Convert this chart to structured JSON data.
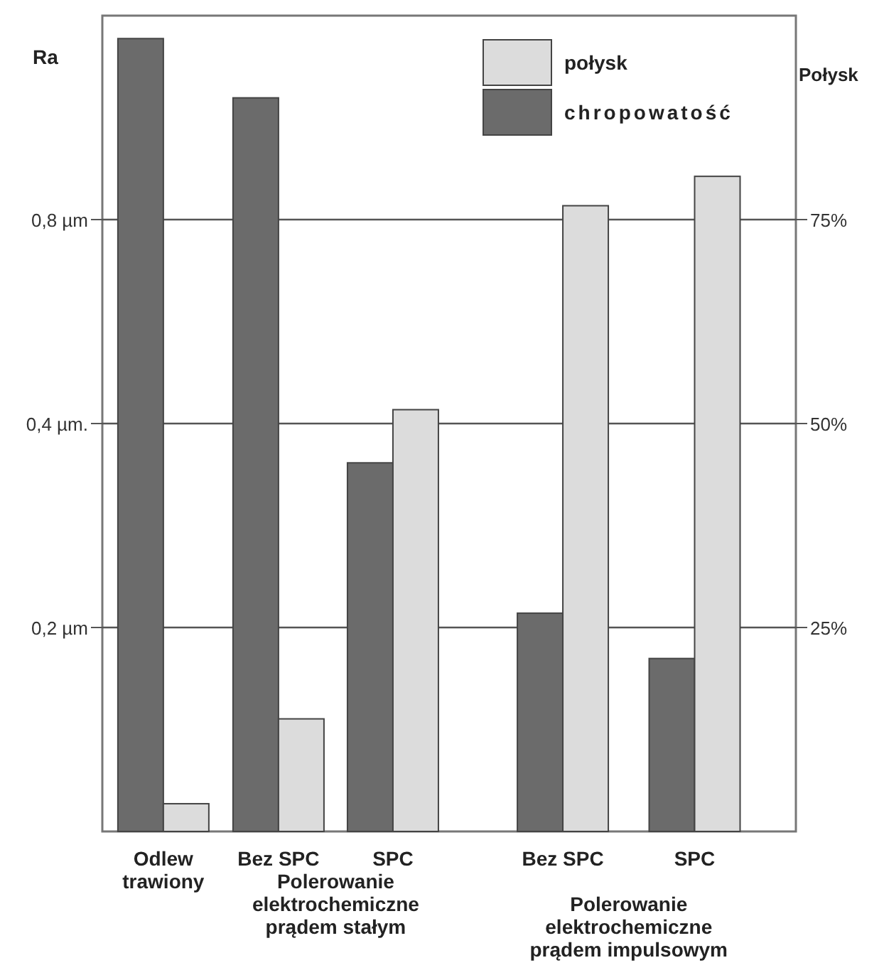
{
  "chart_data": {
    "type": "bar",
    "categories": [
      "Odlew trawiony",
      "Bez SPC",
      "SPC",
      "Bez SPC",
      "SPC"
    ],
    "ylabel": "Ra",
    "y2label": "Połysk",
    "log": "y",
    "ylim": [
      0.1,
      1.6
    ],
    "yticks": [
      {
        "value": 0.2,
        "label": "0,2 µm"
      },
      {
        "value": 0.4,
        "label": "0,4 µm."
      },
      {
        "value": 0.8,
        "label": "0,8 µm"
      }
    ],
    "y2lim": [
      0,
      100
    ],
    "y2ticks": [
      {
        "value": 25,
        "label": "25%"
      },
      {
        "value": 50,
        "label": "50%"
      },
      {
        "value": 75,
        "label": "75%"
      }
    ],
    "grid": "y",
    "legend": "top right",
    "series": [
      {
        "name": "chropowatość",
        "color": "#6b6b6b",
        "values": [
          1.48,
          1.21,
          0.35,
          0.21,
          0.18
        ]
      },
      {
        "name": "połysk",
        "color": "#dcdcdc",
        "axis": "y2",
        "values": [
          3.4,
          13.8,
          51.7,
          76.7,
          80.3
        ]
      }
    ],
    "annotations": [
      "Polerowanie elektrochemiczne prądem stałym",
      "Polerowanie elektrochemiczne prądem impulsowym"
    ]
  }
}
